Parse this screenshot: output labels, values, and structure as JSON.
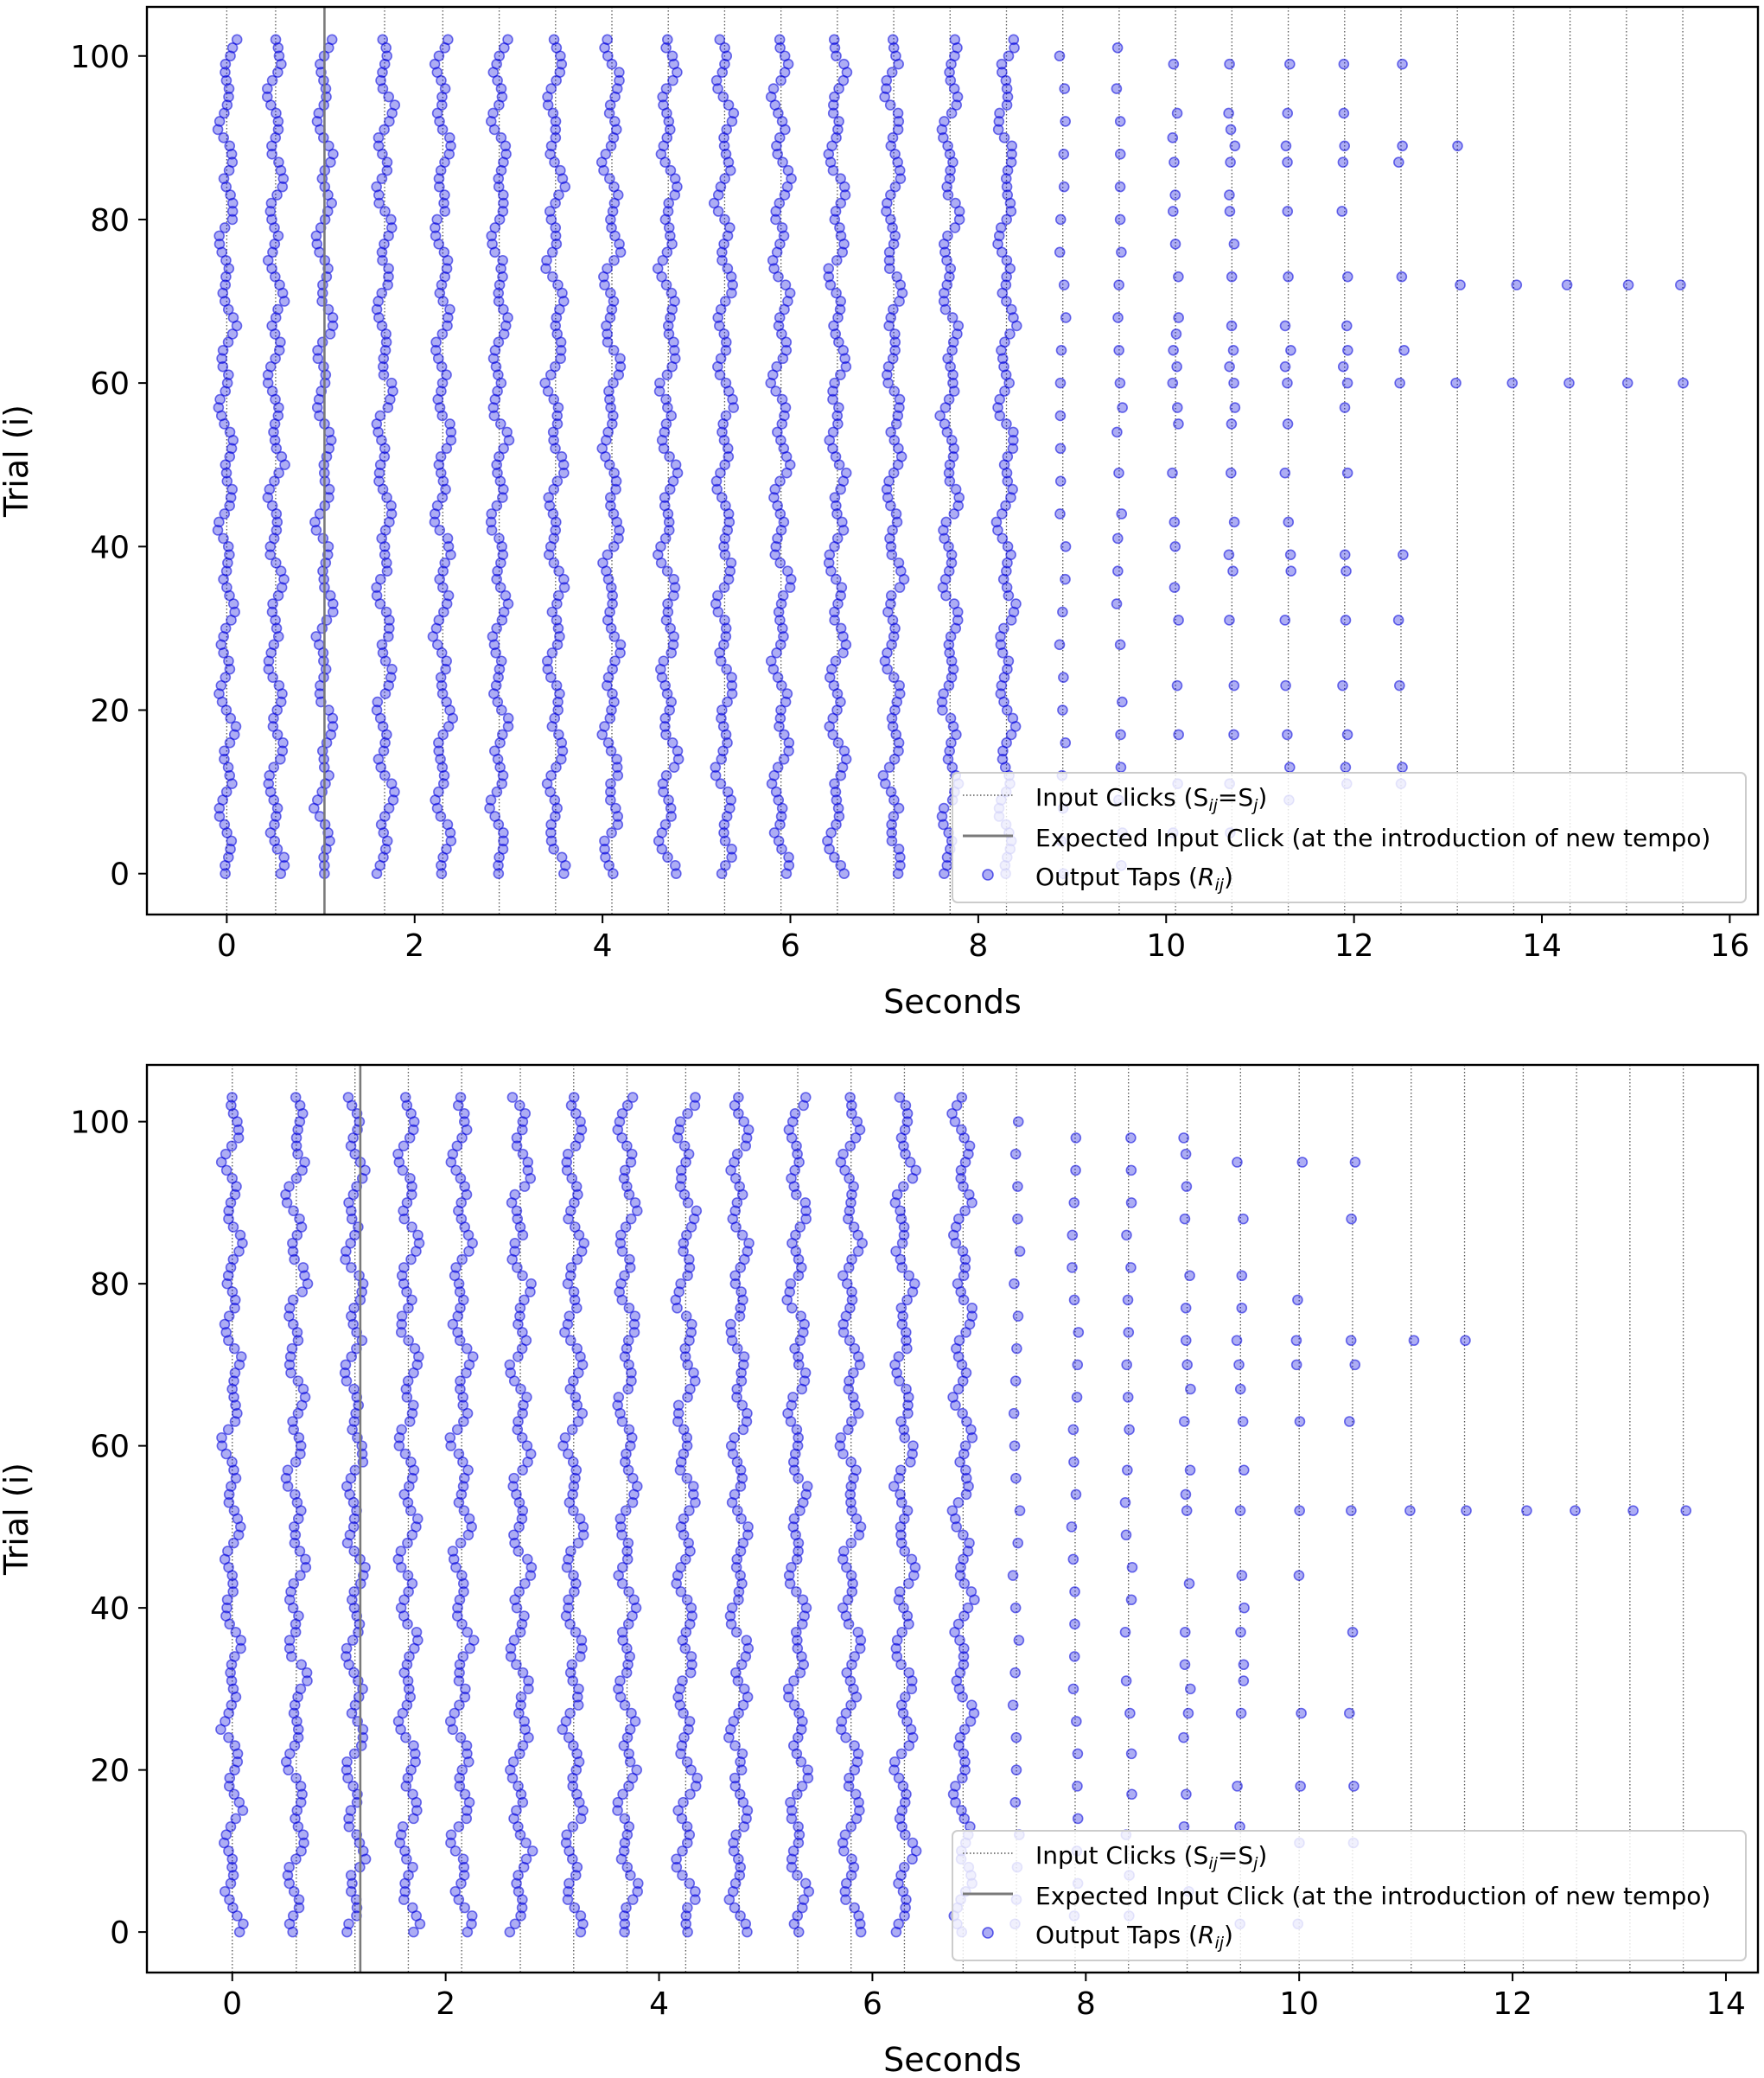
{
  "chart_data": [
    {
      "type": "scatter",
      "xlabel": "Seconds",
      "ylabel": "Trial (i)",
      "xlim": [
        -0.85,
        16.3
      ],
      "ylim": [
        -5,
        106
      ],
      "xticks": [
        0,
        2,
        4,
        6,
        8,
        10,
        12,
        14,
        16
      ],
      "yticks": [
        0,
        20,
        40,
        60,
        80,
        100
      ],
      "input_clicks": [
        0,
        0.52,
        1.04,
        1.68,
        2.3,
        2.9,
        3.5,
        4.1,
        4.7,
        5.3,
        5.9,
        6.5,
        7.1,
        7.7,
        8.3,
        8.9,
        9.5,
        10.1,
        10.7,
        11.3,
        11.9,
        12.5,
        13.1,
        13.7,
        14.3,
        14.9,
        15.5
      ],
      "expected_click": 1.04,
      "full_columns": [
        0,
        0.52,
        1.04,
        1.68,
        2.3,
        2.9,
        3.5,
        4.1,
        4.7,
        5.3,
        5.9,
        6.5,
        7.1,
        7.7,
        8.3
      ],
      "sparse_points": [
        [
          8.9,
          0
        ],
        [
          8.9,
          4
        ],
        [
          8.9,
          8
        ],
        [
          8.9,
          12
        ],
        [
          8.9,
          16
        ],
        [
          8.9,
          20
        ],
        [
          8.9,
          24
        ],
        [
          8.9,
          28
        ],
        [
          8.9,
          32
        ],
        [
          8.9,
          36
        ],
        [
          8.9,
          40
        ],
        [
          8.9,
          44
        ],
        [
          8.9,
          48
        ],
        [
          8.9,
          52
        ],
        [
          8.9,
          56
        ],
        [
          8.9,
          60
        ],
        [
          8.9,
          64
        ],
        [
          8.9,
          68
        ],
        [
          8.9,
          72
        ],
        [
          8.9,
          76
        ],
        [
          8.9,
          80
        ],
        [
          8.9,
          84
        ],
        [
          8.9,
          88
        ],
        [
          8.9,
          92
        ],
        [
          8.9,
          96
        ],
        [
          8.9,
          100
        ],
        [
          9.5,
          1
        ],
        [
          9.5,
          5
        ],
        [
          9.5,
          9
        ],
        [
          9.5,
          13
        ],
        [
          9.5,
          17
        ],
        [
          9.5,
          21
        ],
        [
          9.5,
          28
        ],
        [
          9.5,
          33
        ],
        [
          9.5,
          37
        ],
        [
          9.5,
          41
        ],
        [
          9.5,
          44
        ],
        [
          9.5,
          49
        ],
        [
          9.5,
          54
        ],
        [
          9.5,
          57
        ],
        [
          9.5,
          60
        ],
        [
          9.5,
          64
        ],
        [
          9.5,
          68
        ],
        [
          9.5,
          72
        ],
        [
          9.5,
          76
        ],
        [
          9.5,
          80
        ],
        [
          9.5,
          84
        ],
        [
          9.5,
          88
        ],
        [
          9.5,
          92
        ],
        [
          9.5,
          96
        ],
        [
          9.5,
          101
        ],
        [
          10.1,
          5
        ],
        [
          10.1,
          11
        ],
        [
          10.1,
          17
        ],
        [
          10.1,
          23
        ],
        [
          10.1,
          31
        ],
        [
          10.1,
          35
        ],
        [
          10.1,
          40
        ],
        [
          10.1,
          43
        ],
        [
          10.1,
          49
        ],
        [
          10.1,
          55
        ],
        [
          10.1,
          57
        ],
        [
          10.1,
          60
        ],
        [
          10.1,
          62
        ],
        [
          10.1,
          64
        ],
        [
          10.1,
          66
        ],
        [
          10.1,
          68
        ],
        [
          10.1,
          73
        ],
        [
          10.1,
          77
        ],
        [
          10.1,
          81
        ],
        [
          10.1,
          83
        ],
        [
          10.1,
          87
        ],
        [
          10.1,
          90
        ],
        [
          10.1,
          93
        ],
        [
          10.1,
          99
        ],
        [
          10.7,
          5
        ],
        [
          10.7,
          11
        ],
        [
          10.7,
          17
        ],
        [
          10.7,
          23
        ],
        [
          10.7,
          31
        ],
        [
          10.7,
          37
        ],
        [
          10.7,
          39
        ],
        [
          10.7,
          43
        ],
        [
          10.7,
          49
        ],
        [
          10.7,
          55
        ],
        [
          10.7,
          57
        ],
        [
          10.7,
          60
        ],
        [
          10.7,
          62
        ],
        [
          10.7,
          64
        ],
        [
          10.7,
          67
        ],
        [
          10.7,
          73
        ],
        [
          10.7,
          77
        ],
        [
          10.7,
          81
        ],
        [
          10.7,
          83
        ],
        [
          10.7,
          87
        ],
        [
          10.7,
          89
        ],
        [
          10.7,
          91
        ],
        [
          10.7,
          93
        ],
        [
          10.7,
          99
        ],
        [
          11.3,
          9
        ],
        [
          11.3,
          13
        ],
        [
          11.3,
          17
        ],
        [
          11.3,
          23
        ],
        [
          11.3,
          31
        ],
        [
          11.3,
          37
        ],
        [
          11.3,
          39
        ],
        [
          11.3,
          43
        ],
        [
          11.3,
          49
        ],
        [
          11.3,
          55
        ],
        [
          11.3,
          60
        ],
        [
          11.3,
          62
        ],
        [
          11.3,
          64
        ],
        [
          11.3,
          67
        ],
        [
          11.3,
          73
        ],
        [
          11.3,
          81
        ],
        [
          11.3,
          87
        ],
        [
          11.3,
          89
        ],
        [
          11.3,
          93
        ],
        [
          11.3,
          99
        ],
        [
          11.9,
          11
        ],
        [
          11.9,
          13
        ],
        [
          11.9,
          17
        ],
        [
          11.9,
          23
        ],
        [
          11.9,
          31
        ],
        [
          11.9,
          37
        ],
        [
          11.9,
          39
        ],
        [
          11.9,
          49
        ],
        [
          11.9,
          57
        ],
        [
          11.9,
          60
        ],
        [
          11.9,
          62
        ],
        [
          11.9,
          64
        ],
        [
          11.9,
          67
        ],
        [
          11.9,
          73
        ],
        [
          11.9,
          81
        ],
        [
          11.9,
          87
        ],
        [
          11.9,
          89
        ],
        [
          11.9,
          93
        ],
        [
          11.9,
          99
        ],
        [
          12.5,
          11
        ],
        [
          12.5,
          13
        ],
        [
          12.5,
          23
        ],
        [
          12.5,
          31
        ],
        [
          12.5,
          39
        ],
        [
          12.5,
          60
        ],
        [
          12.5,
          64
        ],
        [
          12.5,
          73
        ],
        [
          12.5,
          87
        ],
        [
          12.5,
          89
        ],
        [
          12.5,
          99
        ],
        [
          13.1,
          60
        ],
        [
          13.1,
          72
        ],
        [
          13.1,
          89
        ],
        [
          13.7,
          60
        ],
        [
          13.7,
          72
        ],
        [
          14.3,
          60
        ],
        [
          14.3,
          72
        ],
        [
          14.9,
          60
        ],
        [
          14.9,
          72
        ],
        [
          15.5,
          60
        ],
        [
          15.5,
          72
        ]
      ],
      "legend": {
        "position": "lower right",
        "items": [
          {
            "kind": "dotted-line",
            "prefix": "Input Clicks (S",
            "sub1": "ij",
            "mid": "=S",
            "sub2": "j",
            "suffix": ")"
          },
          {
            "kind": "solid-line",
            "label": "Expected Input Click (at the introduction of new tempo)"
          },
          {
            "kind": "marker",
            "prefix": "Output Taps (",
            "italic": "R",
            "sub1": "ij",
            "suffix": ")"
          }
        ]
      },
      "colors": {
        "points": "#0000dd",
        "input_clicks": "#555555",
        "expected": "#7a7a7a"
      }
    },
    {
      "type": "scatter",
      "xlabel": "Seconds",
      "ylabel": "Trial (i)",
      "xlim": [
        -0.8,
        14.3
      ],
      "ylim": [
        -5,
        107
      ],
      "xticks": [
        0,
        2,
        4,
        6,
        8,
        10,
        12,
        14
      ],
      "yticks": [
        0,
        20,
        40,
        60,
        80,
        100
      ],
      "input_clicks": [
        0,
        0.6,
        1.15,
        1.65,
        2.15,
        2.7,
        3.2,
        3.7,
        4.25,
        4.75,
        5.3,
        5.8,
        6.3,
        6.85,
        7.35,
        7.9,
        8.4,
        8.95,
        9.45,
        10.0,
        10.5,
        11.05,
        11.55,
        12.1,
        12.6,
        13.1,
        13.6
      ],
      "expected_click": 1.2,
      "full_columns": [
        0,
        0.6,
        1.15,
        1.65,
        2.15,
        2.7,
        3.2,
        3.7,
        4.25,
        4.75,
        5.3,
        5.8,
        6.3,
        6.85
      ],
      "sparse_points": [
        [
          7.35,
          1
        ],
        [
          7.35,
          4
        ],
        [
          7.35,
          8
        ],
        [
          7.35,
          12
        ],
        [
          7.35,
          16
        ],
        [
          7.35,
          20
        ],
        [
          7.35,
          24
        ],
        [
          7.35,
          28
        ],
        [
          7.35,
          32
        ],
        [
          7.35,
          36
        ],
        [
          7.35,
          40
        ],
        [
          7.35,
          44
        ],
        [
          7.35,
          48
        ],
        [
          7.35,
          52
        ],
        [
          7.35,
          56
        ],
        [
          7.35,
          60
        ],
        [
          7.35,
          64
        ],
        [
          7.35,
          68
        ],
        [
          7.35,
          72
        ],
        [
          7.35,
          76
        ],
        [
          7.35,
          80
        ],
        [
          7.35,
          84
        ],
        [
          7.35,
          88
        ],
        [
          7.35,
          92
        ],
        [
          7.35,
          96
        ],
        [
          7.35,
          100
        ],
        [
          7.9,
          2
        ],
        [
          7.9,
          6
        ],
        [
          7.9,
          10
        ],
        [
          7.9,
          14
        ],
        [
          7.9,
          18
        ],
        [
          7.9,
          22
        ],
        [
          7.9,
          26
        ],
        [
          7.9,
          30
        ],
        [
          7.9,
          34
        ],
        [
          7.9,
          38
        ],
        [
          7.9,
          42
        ],
        [
          7.9,
          46
        ],
        [
          7.9,
          50
        ],
        [
          7.9,
          54
        ],
        [
          7.9,
          58
        ],
        [
          7.9,
          62
        ],
        [
          7.9,
          66
        ],
        [
          7.9,
          70
        ],
        [
          7.9,
          74
        ],
        [
          7.9,
          78
        ],
        [
          7.9,
          82
        ],
        [
          7.9,
          86
        ],
        [
          7.9,
          90
        ],
        [
          7.9,
          94
        ],
        [
          7.9,
          98
        ],
        [
          8.4,
          2
        ],
        [
          8.4,
          7
        ],
        [
          8.4,
          12
        ],
        [
          8.4,
          17
        ],
        [
          8.4,
          22
        ],
        [
          8.4,
          27
        ],
        [
          8.4,
          31
        ],
        [
          8.4,
          37
        ],
        [
          8.4,
          41
        ],
        [
          8.4,
          45
        ],
        [
          8.4,
          49
        ],
        [
          8.4,
          53
        ],
        [
          8.4,
          57
        ],
        [
          8.4,
          62
        ],
        [
          8.4,
          66
        ],
        [
          8.4,
          70
        ],
        [
          8.4,
          74
        ],
        [
          8.4,
          78
        ],
        [
          8.4,
          82
        ],
        [
          8.4,
          86
        ],
        [
          8.4,
          90
        ],
        [
          8.4,
          94
        ],
        [
          8.4,
          98
        ],
        [
          8.95,
          5
        ],
        [
          8.95,
          13
        ],
        [
          8.95,
          17
        ],
        [
          8.95,
          24
        ],
        [
          8.95,
          27
        ],
        [
          8.95,
          30
        ],
        [
          8.95,
          33
        ],
        [
          8.95,
          37
        ],
        [
          8.95,
          43
        ],
        [
          8.95,
          52
        ],
        [
          8.95,
          54
        ],
        [
          8.95,
          57
        ],
        [
          8.95,
          63
        ],
        [
          8.95,
          67
        ],
        [
          8.95,
          70
        ],
        [
          8.95,
          73
        ],
        [
          8.95,
          77
        ],
        [
          8.95,
          81
        ],
        [
          8.95,
          88
        ],
        [
          8.95,
          92
        ],
        [
          8.95,
          96
        ],
        [
          8.95,
          98
        ],
        [
          9.45,
          1
        ],
        [
          9.45,
          13
        ],
        [
          9.45,
          18
        ],
        [
          9.45,
          27
        ],
        [
          9.45,
          31
        ],
        [
          9.45,
          33
        ],
        [
          9.45,
          37
        ],
        [
          9.45,
          40
        ],
        [
          9.45,
          44
        ],
        [
          9.45,
          52
        ],
        [
          9.45,
          57
        ],
        [
          9.45,
          63
        ],
        [
          9.45,
          67
        ],
        [
          9.45,
          70
        ],
        [
          9.45,
          73
        ],
        [
          9.45,
          77
        ],
        [
          9.45,
          81
        ],
        [
          9.45,
          88
        ],
        [
          9.45,
          95
        ],
        [
          10.0,
          1
        ],
        [
          10.0,
          11
        ],
        [
          10.0,
          18
        ],
        [
          10.0,
          27
        ],
        [
          10.0,
          44
        ],
        [
          10.0,
          52
        ],
        [
          10.0,
          63
        ],
        [
          10.0,
          70
        ],
        [
          10.0,
          73
        ],
        [
          10.0,
          78
        ],
        [
          10.0,
          95
        ],
        [
          10.5,
          11
        ],
        [
          10.5,
          18
        ],
        [
          10.5,
          27
        ],
        [
          10.5,
          37
        ],
        [
          10.5,
          52
        ],
        [
          10.5,
          63
        ],
        [
          10.5,
          70
        ],
        [
          10.5,
          73
        ],
        [
          10.5,
          88
        ],
        [
          10.5,
          95
        ],
        [
          11.05,
          52
        ],
        [
          11.05,
          73
        ],
        [
          11.55,
          52
        ],
        [
          11.55,
          73
        ],
        [
          12.1,
          52
        ],
        [
          12.6,
          52
        ],
        [
          13.1,
          52
        ],
        [
          13.6,
          52
        ]
      ],
      "legend": {
        "position": "lower right",
        "items": [
          {
            "kind": "dotted-line",
            "prefix": "Input Clicks (S",
            "sub1": "ij",
            "mid": "=S",
            "sub2": "j",
            "suffix": ")"
          },
          {
            "kind": "solid-line",
            "label": "Expected Input Click (at the introduction of new tempo)"
          },
          {
            "kind": "marker",
            "prefix": "Output Taps (",
            "italic": "R",
            "sub1": "ij",
            "suffix": ")"
          }
        ]
      },
      "colors": {
        "points": "#0000dd",
        "input_clicks": "#555555",
        "expected": "#7a7a7a"
      }
    }
  ]
}
